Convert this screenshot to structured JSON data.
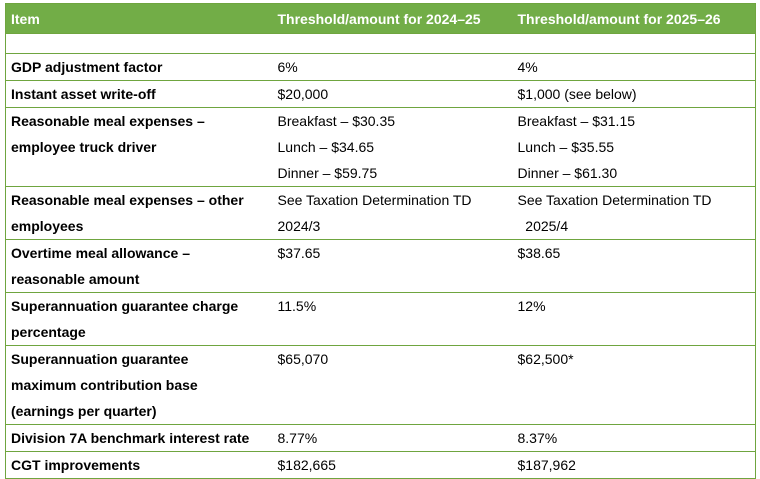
{
  "colors": {
    "header_bg": "#72ad47",
    "header_text": "#ffffff",
    "border": "#6fa53f",
    "body_text": "#000000"
  },
  "table": {
    "columns": [
      "Item",
      "Threshold/amount for 2024–25",
      "Threshold/amount for 2025–26"
    ],
    "rows": [
      {
        "item": [],
        "c1": [],
        "c2": []
      },
      {
        "item": [
          "GDP adjustment factor"
        ],
        "c1": [
          "6%"
        ],
        "c2": [
          "4%"
        ]
      },
      {
        "item": [
          "Instant asset write-off"
        ],
        "c1": [
          "$20,000"
        ],
        "c2": [
          "$1,000 (see below)"
        ]
      },
      {
        "item": [
          "Reasonable meal expenses –",
          "employee truck driver"
        ],
        "c1": [
          "Breakfast – $30.35",
          "Lunch – $34.65",
          "Dinner – $59.75"
        ],
        "c2": [
          "Breakfast – $31.15",
          "Lunch – $35.55",
          "Dinner – $61.30"
        ]
      },
      {
        "item": [
          "Reasonable meal expenses – other",
          "employees"
        ],
        "c1": [
          "See Taxation Determination TD",
          "2024/3"
        ],
        "c2": [
          "See Taxation Determination TD",
          "  2025/4"
        ]
      },
      {
        "item": [
          "Overtime meal allowance –",
          "reasonable amount"
        ],
        "c1": [
          "$37.65"
        ],
        "c2": [
          "$38.65"
        ]
      },
      {
        "item": [
          "Superannuation guarantee charge",
          "percentage"
        ],
        "c1": [
          "11.5%"
        ],
        "c2": [
          "12%"
        ]
      },
      {
        "item": [
          "Superannuation guarantee",
          "maximum contribution base",
          "(earnings per quarter)"
        ],
        "c1": [
          "$65,070"
        ],
        "c2": [
          "$62,500*"
        ]
      },
      {
        "item": [
          "Division 7A benchmark interest rate"
        ],
        "c1": [
          "8.77%"
        ],
        "c2": [
          "8.37%"
        ]
      },
      {
        "item": [
          "CGT improvements"
        ],
        "c1": [
          "$182,665"
        ],
        "c2": [
          "$187,962"
        ]
      }
    ]
  }
}
